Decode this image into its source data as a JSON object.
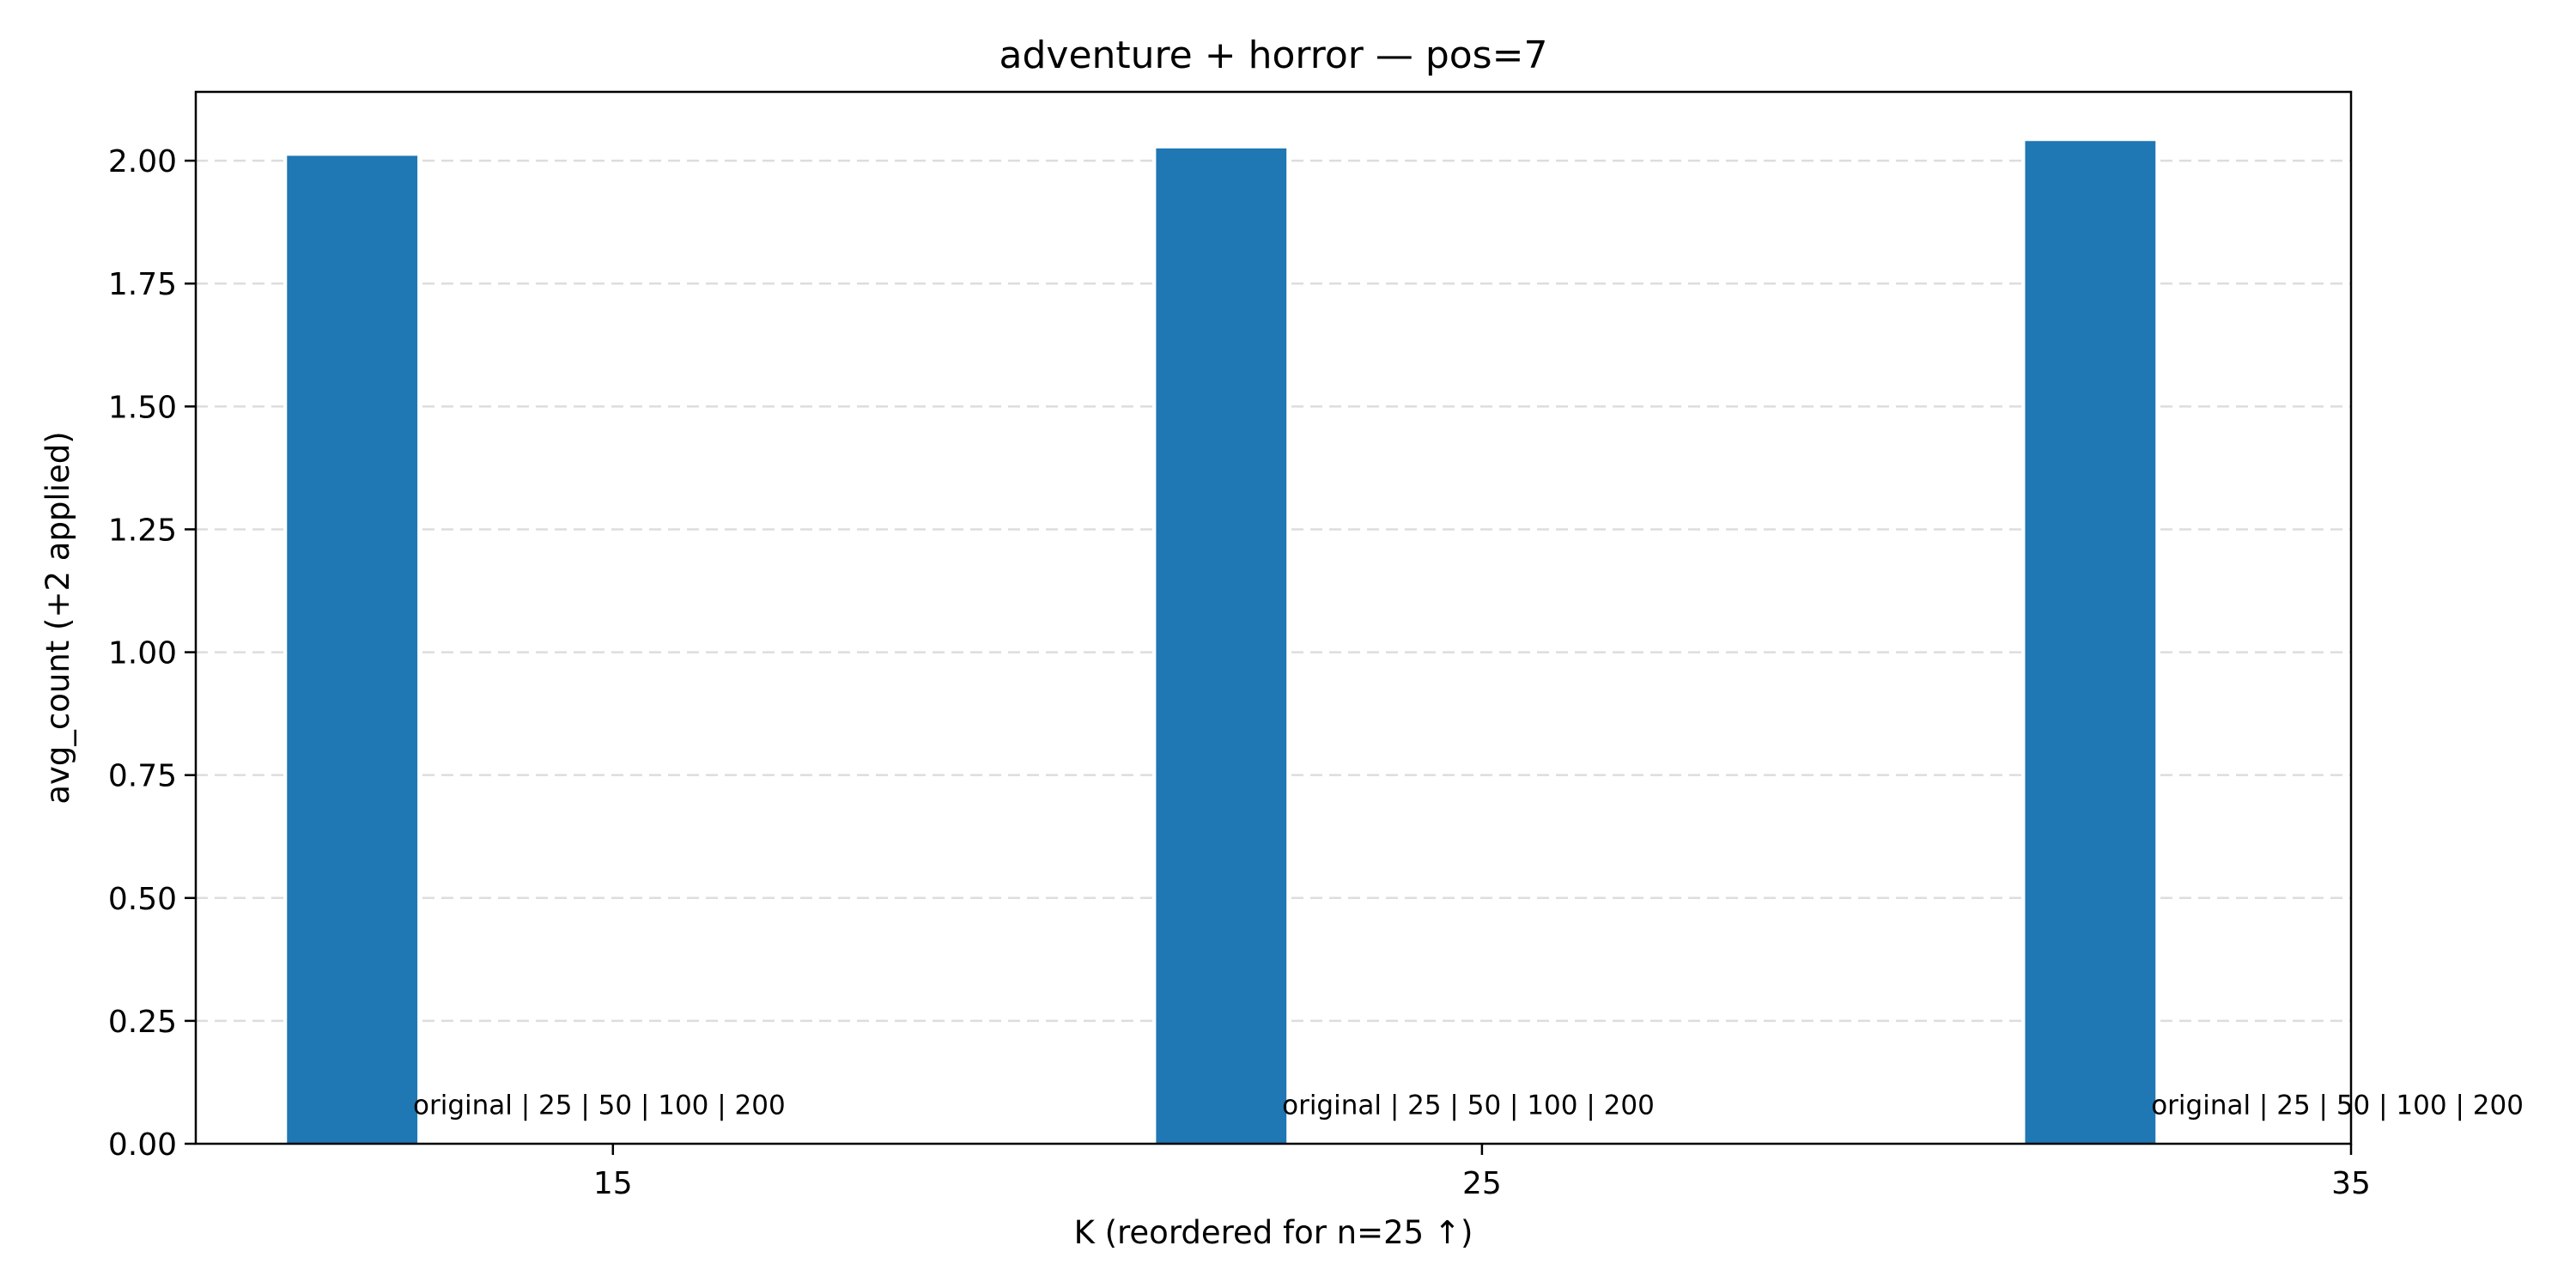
{
  "chart_data": {
    "type": "bar",
    "title": "adventure + horror — pos=7",
    "xlabel": "K (reordered for n=25 ↑)",
    "ylabel": "avg_count (+2 applied)",
    "x": [
      12.0,
      22.0,
      32.0
    ],
    "values": [
      2.01,
      2.025,
      2.04
    ],
    "bar_width": 1.5,
    "xlim": [
      10.2,
      35.0
    ],
    "ylim": [
      0.0,
      2.14
    ],
    "xticks": [
      15,
      25,
      35
    ],
    "xtick_labels": [
      "15",
      "25",
      "35"
    ],
    "yticks": [
      0.0,
      0.25,
      0.5,
      0.75,
      1.0,
      1.25,
      1.5,
      1.75,
      2.0
    ],
    "ytick_labels": [
      "0.00",
      "0.25",
      "0.50",
      "0.75",
      "1.00",
      "1.25",
      "1.50",
      "1.75",
      "2.00"
    ],
    "annotations": [
      {
        "text": "original | 25 | 50 | 100 | 200",
        "x": 12.7,
        "y": 0.06
      },
      {
        "text": "original | 25 | 50 | 100 | 200",
        "x": 22.7,
        "y": 0.06
      },
      {
        "text": "original | 25 | 50 | 100 | 200",
        "x": 32.7,
        "y": 0.06
      }
    ],
    "grid": "y-dashed",
    "bar_color": "#1f77b4",
    "grid_color": "#dddddd"
  }
}
